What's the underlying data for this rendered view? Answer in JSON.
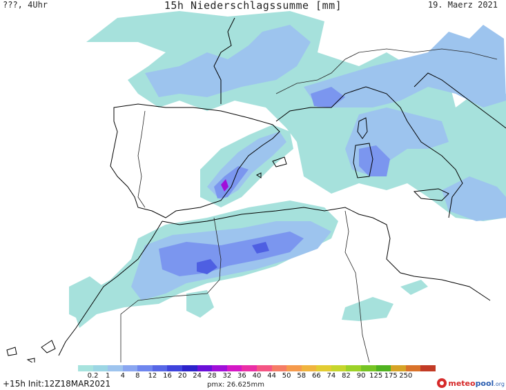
{
  "header": {
    "left": "???, 4Uhr",
    "title": "15h Niederschlagssumme [mm]",
    "date": "19. Maerz 2021"
  },
  "legend": {
    "ticks": [
      "0.2",
      "1",
      "4",
      "8",
      "12",
      "16",
      "20",
      "24",
      "28",
      "32",
      "36",
      "40",
      "44",
      "50",
      "58",
      "66",
      "74",
      "82",
      "90",
      "125",
      "175",
      "250"
    ],
    "colors": [
      "#a7e3de",
      "#9cd6e4",
      "#9ec4ee",
      "#8aa6f0",
      "#6f86ee",
      "#5767e6",
      "#3f44dc",
      "#2c22cb",
      "#6a10d8",
      "#a00fd9",
      "#d418c6",
      "#ea2fa6",
      "#f45584",
      "#f57c66",
      "#f59a4c",
      "#f0b43e",
      "#e2cc32",
      "#c6d62c",
      "#9cd228",
      "#76c424",
      "#4fb220",
      "#d6a326",
      "#d9722a",
      "#c23b25"
    ],
    "tick_color": "#111111"
  },
  "footer": {
    "init": "+15h Init:12Z18MAR2021",
    "pmx": "pmx: 26.625mm"
  },
  "logo": {
    "meteo": "meteo",
    "pool": "pool",
    "org": ".org",
    "brand_red": "#d62a2a",
    "brand_blue": "#2a5db0"
  },
  "map": {
    "colors": {
      "light": "#a6e1dc",
      "blue1": "#9dc4ee",
      "blue2": "#7b96ef",
      "blue3": "#4e5fe2",
      "peak": "#a00fd9",
      "land_outline": "#000000",
      "border": "#222222"
    }
  }
}
